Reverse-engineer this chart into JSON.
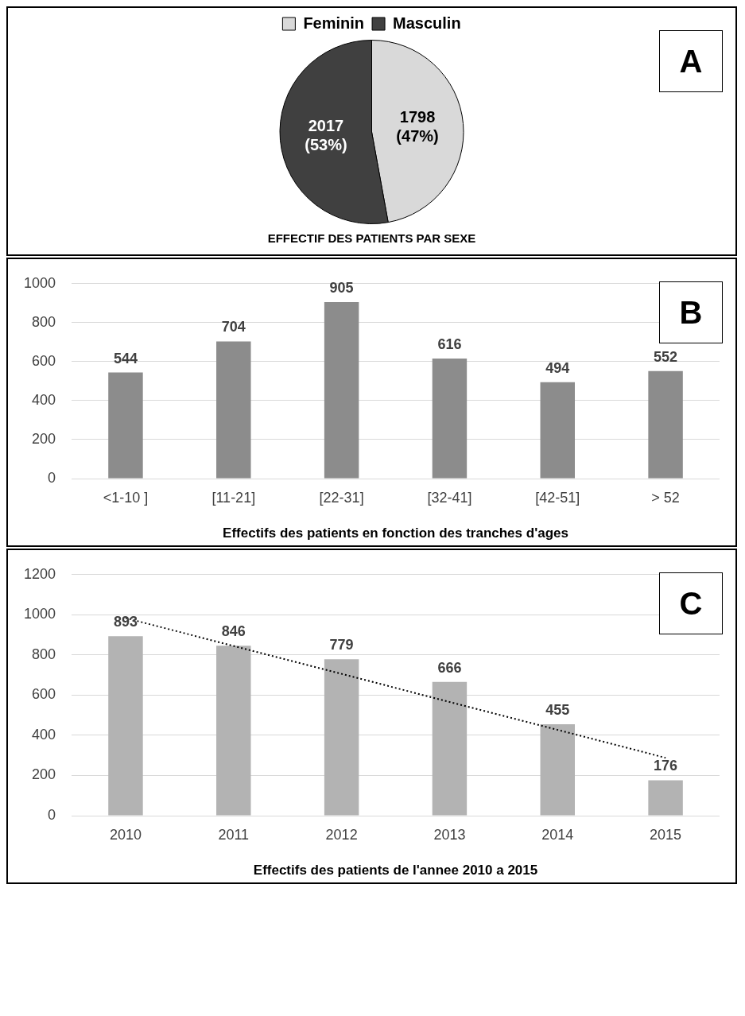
{
  "chart_data": [
    {
      "type": "pie",
      "title": "EFFECTIF DES PATIENTS PAR SEXE",
      "categories": [
        "Feminin",
        "Masculin"
      ],
      "values": [
        1798,
        2017
      ],
      "colors": [
        "#d9d9d9",
        "#404040"
      ],
      "value_labels": [
        "1798 (47%)",
        "2017 (53%)"
      ],
      "legend": "top",
      "annotations": [
        "A"
      ]
    },
    {
      "type": "bar",
      "xlabel": "Effectifs des patients en fonction des tranches d'ages",
      "categories": [
        "<1-10 ]",
        "[11-21]",
        "[22-31]",
        "[32-41]",
        "[42-51]",
        "> 52"
      ],
      "values": [
        544,
        704,
        905,
        616,
        494,
        552
      ],
      "color": "#8c8c8c",
      "ylim": [
        0,
        1000
      ],
      "yticks": [
        0,
        200,
        400,
        600,
        800,
        1000
      ],
      "grid": "y",
      "data_labels": true,
      "annotations": [
        "B"
      ]
    },
    {
      "type": "bar",
      "xlabel": "Effectifs des patients de l'annee 2010 a 2015",
      "categories": [
        "2010",
        "2011",
        "2012",
        "2013",
        "2014",
        "2015"
      ],
      "series": [
        {
          "type": "bar",
          "color": "#b3b3b3",
          "values": [
            893,
            846,
            779,
            666,
            455,
            176
          ],
          "value_labels": [
            "893",
            "846",
            "779",
            "666",
            "455",
            "176"
          ]
        },
        {
          "type": "line",
          "color": "#000000",
          "values": [
            984,
            845,
            706,
            566,
            427,
            288
          ],
          "line_style": "dotted",
          "marker": "none"
        }
      ],
      "ylim": [
        0,
        1200
      ],
      "yticks": [
        0,
        200,
        400,
        600,
        800,
        1000,
        1200
      ],
      "grid": "y",
      "annotations": [
        "C"
      ]
    }
  ]
}
